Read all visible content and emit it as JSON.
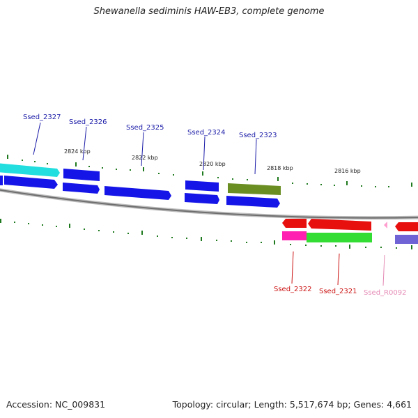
{
  "title": "Shewanella sediminis HAW-EB3, complete genome",
  "footer": {
    "accession": "Accession: NC_009831",
    "summary": "Topology: circular; Length: 5,517,674 bp; Genes: 4,661"
  },
  "colors": {
    "forward_cds": "#1515e8",
    "highlight_cyan": "#22dede",
    "highlight_olive": "#6b8e23",
    "reverse_cds": "#e80f0f",
    "reverse_magenta": "#ff1fb0",
    "reverse_green": "#33dd33",
    "rna_pink": "#ff9ecf",
    "reverse_purple": "#6f63d6",
    "forward_label": "#1a1aa8",
    "reverse_label": "#cc1111",
    "rna_label": "#e58ab5",
    "tick": "#1f7a1f",
    "backbone": "#7a7a7a"
  },
  "kbp_labels": [
    "2824 kbp",
    "2822 kbp",
    "2820 kbp",
    "2818 kbp",
    "2816 kbp"
  ],
  "forward_gene_labels": [
    "Ssed_2327",
    "Ssed_2326",
    "Ssed_2325",
    "Ssed_2324",
    "Ssed_2323"
  ],
  "reverse_gene_labels": [
    "Ssed_2322",
    "Ssed_2321",
    "Ssed_R0092"
  ]
}
